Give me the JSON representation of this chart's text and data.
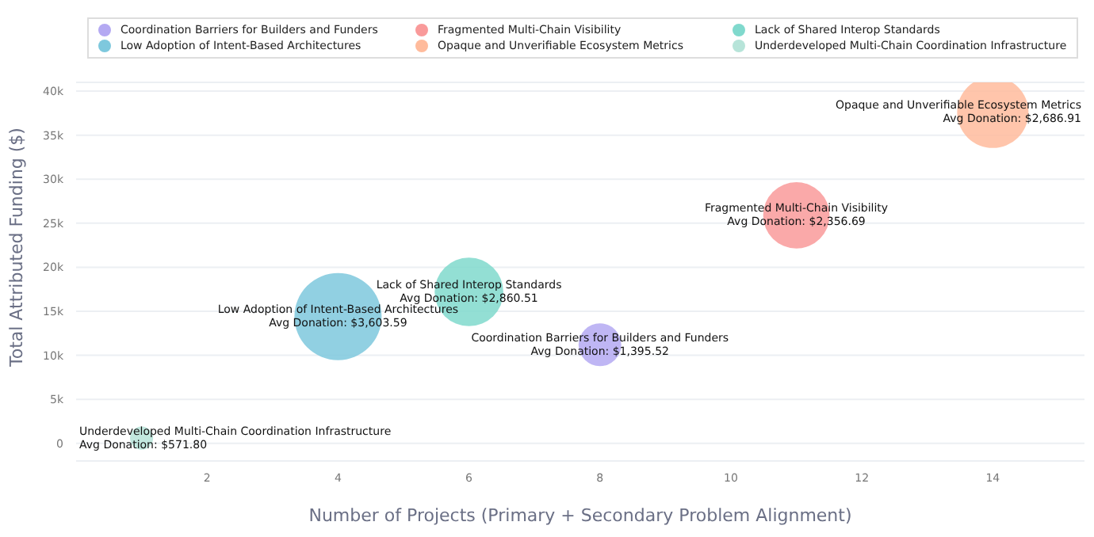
{
  "chart_data": {
    "type": "bubble",
    "xlabel": "Number of Projects (Primary + Secondary Problem Alignment)",
    "ylabel": "Total Attributed Funding ($)",
    "xlim": [
      0,
      15.4
    ],
    "xticks": [
      2,
      4,
      6,
      8,
      10,
      12,
      14
    ],
    "ylim": [
      -2000,
      41000
    ],
    "yticks": [
      0,
      {
        "value": 5000,
        "label": "5k"
      },
      {
        "value": 10000,
        "label": "10k"
      },
      {
        "value": 15000,
        "label": "15k"
      },
      {
        "value": 20000,
        "label": "20k"
      },
      {
        "value": 25000,
        "label": "25k"
      },
      {
        "value": 30000,
        "label": "30k"
      },
      {
        "value": 35000,
        "label": "35k"
      },
      {
        "value": 40000,
        "label": "40k"
      }
    ],
    "grid": "y",
    "legend": "top",
    "series": [
      {
        "name": "Coordination Barriers for Builders and Funders",
        "color": "#b4a9f2",
        "x": [
          8
        ],
        "values": [
          11200
        ],
        "sizes": [
          0.24
        ]
      },
      {
        "name": "Fragmented Multi-Chain Visibility",
        "color": "#f99a9a",
        "x": [
          11
        ],
        "values": [
          25900
        ],
        "sizes": [
          0.58
        ]
      },
      {
        "name": "Lack of Shared Interop Standards",
        "color": "#80d9cd",
        "x": [
          6
        ],
        "values": [
          17200
        ],
        "sizes": [
          0.62
        ]
      },
      {
        "name": "Low Adoption of Intent-Based Architectures",
        "color": "#7ec8dd",
        "x": [
          4
        ],
        "values": [
          14400
        ],
        "sizes": [
          1
        ]
      },
      {
        "name": "Opaque and Unverifiable Ecosystem Metrics",
        "color": "#ffbb9c",
        "x": [
          14
        ],
        "values": [
          37600
        ],
        "sizes": [
          0.67
        ]
      },
      {
        "name": "Underdeveloped Multi-Chain Coordination Infrastructure",
        "color": "#b7e4d9",
        "x": [
          1
        ],
        "values": [
          600
        ],
        "sizes": [
          0.07
        ]
      }
    ],
    "annotations": [
      {
        "text": "Avg Donation: $1,395.52",
        "x": 8,
        "y": 11200
      },
      {
        "text": "Avg Donation: $2,356.69",
        "x": 11,
        "y": 25900
      },
      {
        "text": "Avg Donation: $2,860.51",
        "x": 6,
        "y": 17200
      },
      {
        "text": "Avg Donation: $3,603.59",
        "x": 4,
        "y": 14400
      },
      {
        "text": "Avg Donation: $2,686.91",
        "x": 14,
        "y": 37600
      },
      {
        "text": "Avg Donation: $571.80",
        "x": 1,
        "y": 600
      }
    ]
  }
}
